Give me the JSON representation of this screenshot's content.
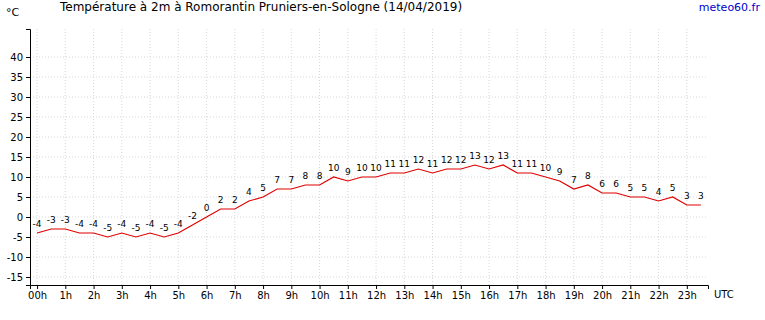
{
  "chart_data": {
    "type": "line",
    "title": "Température à 2m à Romorantin Pruniers-en-Sologne (14/04/2019)",
    "source": "meteo60.fr",
    "y_label": "°C",
    "x_label": "UTC",
    "x": [
      0,
      0.5,
      1,
      1.5,
      2,
      2.5,
      3,
      3.5,
      4,
      4.5,
      5,
      5.5,
      6,
      6.5,
      7,
      7.5,
      8,
      8.5,
      9,
      9.5,
      10,
      10.5,
      11,
      11.5,
      12,
      12.5,
      13,
      13.5,
      14,
      14.5,
      15,
      15.5,
      16,
      16.5,
      17,
      17.5,
      18,
      18.5,
      19,
      19.5,
      20,
      20.5,
      21,
      21.5,
      22,
      22.5,
      23,
      23.5
    ],
    "values": [
      -4,
      -3,
      -3,
      -4,
      -4,
      -5,
      -4,
      -5,
      -4,
      -5,
      -4,
      -2,
      0,
      2,
      2,
      4,
      5,
      7,
      7,
      8,
      8,
      10,
      9,
      10,
      10,
      11,
      11,
      12,
      11,
      12,
      12,
      13,
      12,
      13,
      11,
      11,
      10,
      9,
      7,
      8,
      6,
      6,
      5,
      5,
      4,
      5,
      3,
      3
    ],
    "color": "#e00000",
    "data_labels": true,
    "grid": true,
    "xlim": [
      -0.25,
      23.75
    ],
    "xticks": [
      {
        "value": 0,
        "label": "00h"
      },
      {
        "value": 1,
        "label": "1h"
      },
      {
        "value": 2,
        "label": "2h"
      },
      {
        "value": 3,
        "label": "3h"
      },
      {
        "value": 4,
        "label": "4h"
      },
      {
        "value": 5,
        "label": "5h"
      },
      {
        "value": 6,
        "label": "6h"
      },
      {
        "value": 7,
        "label": "7h"
      },
      {
        "value": 8,
        "label": "8h"
      },
      {
        "value": 9,
        "label": "9h"
      },
      {
        "value": 10,
        "label": "10h"
      },
      {
        "value": 11,
        "label": "11h"
      },
      {
        "value": 12,
        "label": "12h"
      },
      {
        "value": 13,
        "label": "13h"
      },
      {
        "value": 14,
        "label": "14h"
      },
      {
        "value": 15,
        "label": "15h"
      },
      {
        "value": 16,
        "label": "16h"
      },
      {
        "value": 17,
        "label": "17h"
      },
      {
        "value": 18,
        "label": "18h"
      },
      {
        "value": 19,
        "label": "19h"
      },
      {
        "value": 20,
        "label": "20h"
      },
      {
        "value": 21,
        "label": "21h"
      },
      {
        "value": 22,
        "label": "22h"
      },
      {
        "value": 23,
        "label": "23h"
      }
    ],
    "ylim": [
      -17,
      47
    ],
    "yticks": [
      -15,
      -10,
      -5,
      0,
      5,
      10,
      15,
      20,
      25,
      30,
      35,
      40
    ]
  }
}
